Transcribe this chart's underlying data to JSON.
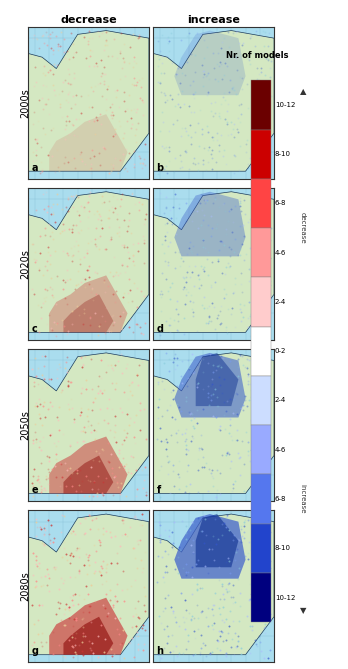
{
  "title_left": "decrease",
  "title_right": "increase",
  "row_labels": [
    "2000s",
    "2020s",
    "2050s",
    "2080s"
  ],
  "panel_labels": [
    "a",
    "b",
    "c",
    "d",
    "e",
    "f",
    "g",
    "h"
  ],
  "colorbar_title": "Nr. of models",
  "colorbar_labels_decrease": [
    "10-12",
    "8-10",
    "6-8",
    "4-6",
    "2-4",
    "0-2"
  ],
  "colorbar_labels_increase": [
    "2-4",
    "4-6",
    "6-8",
    "8-10",
    "10-12"
  ],
  "colorbar_colors_decrease": [
    "#6b0000",
    "#cc0000",
    "#ff4444",
    "#ff9999",
    "#ffcccc",
    "#ffffff"
  ],
  "colorbar_colors_increase": [
    "#ccddff",
    "#99aaff",
    "#5577ee",
    "#2244cc",
    "#00007f"
  ],
  "arrow_up_color": "#333333",
  "arrow_down_color": "#333333",
  "decrease_label": "decrease",
  "increase_label": "increase",
  "bg_color": "#aaddee",
  "land_color": "#d4e8c2",
  "border_color": "#1a3a5c",
  "grid_color": "#7ab8d0",
  "map_border_color": "#333333",
  "figwidth": 3.48,
  "figheight": 6.69,
  "dpi": 100
}
